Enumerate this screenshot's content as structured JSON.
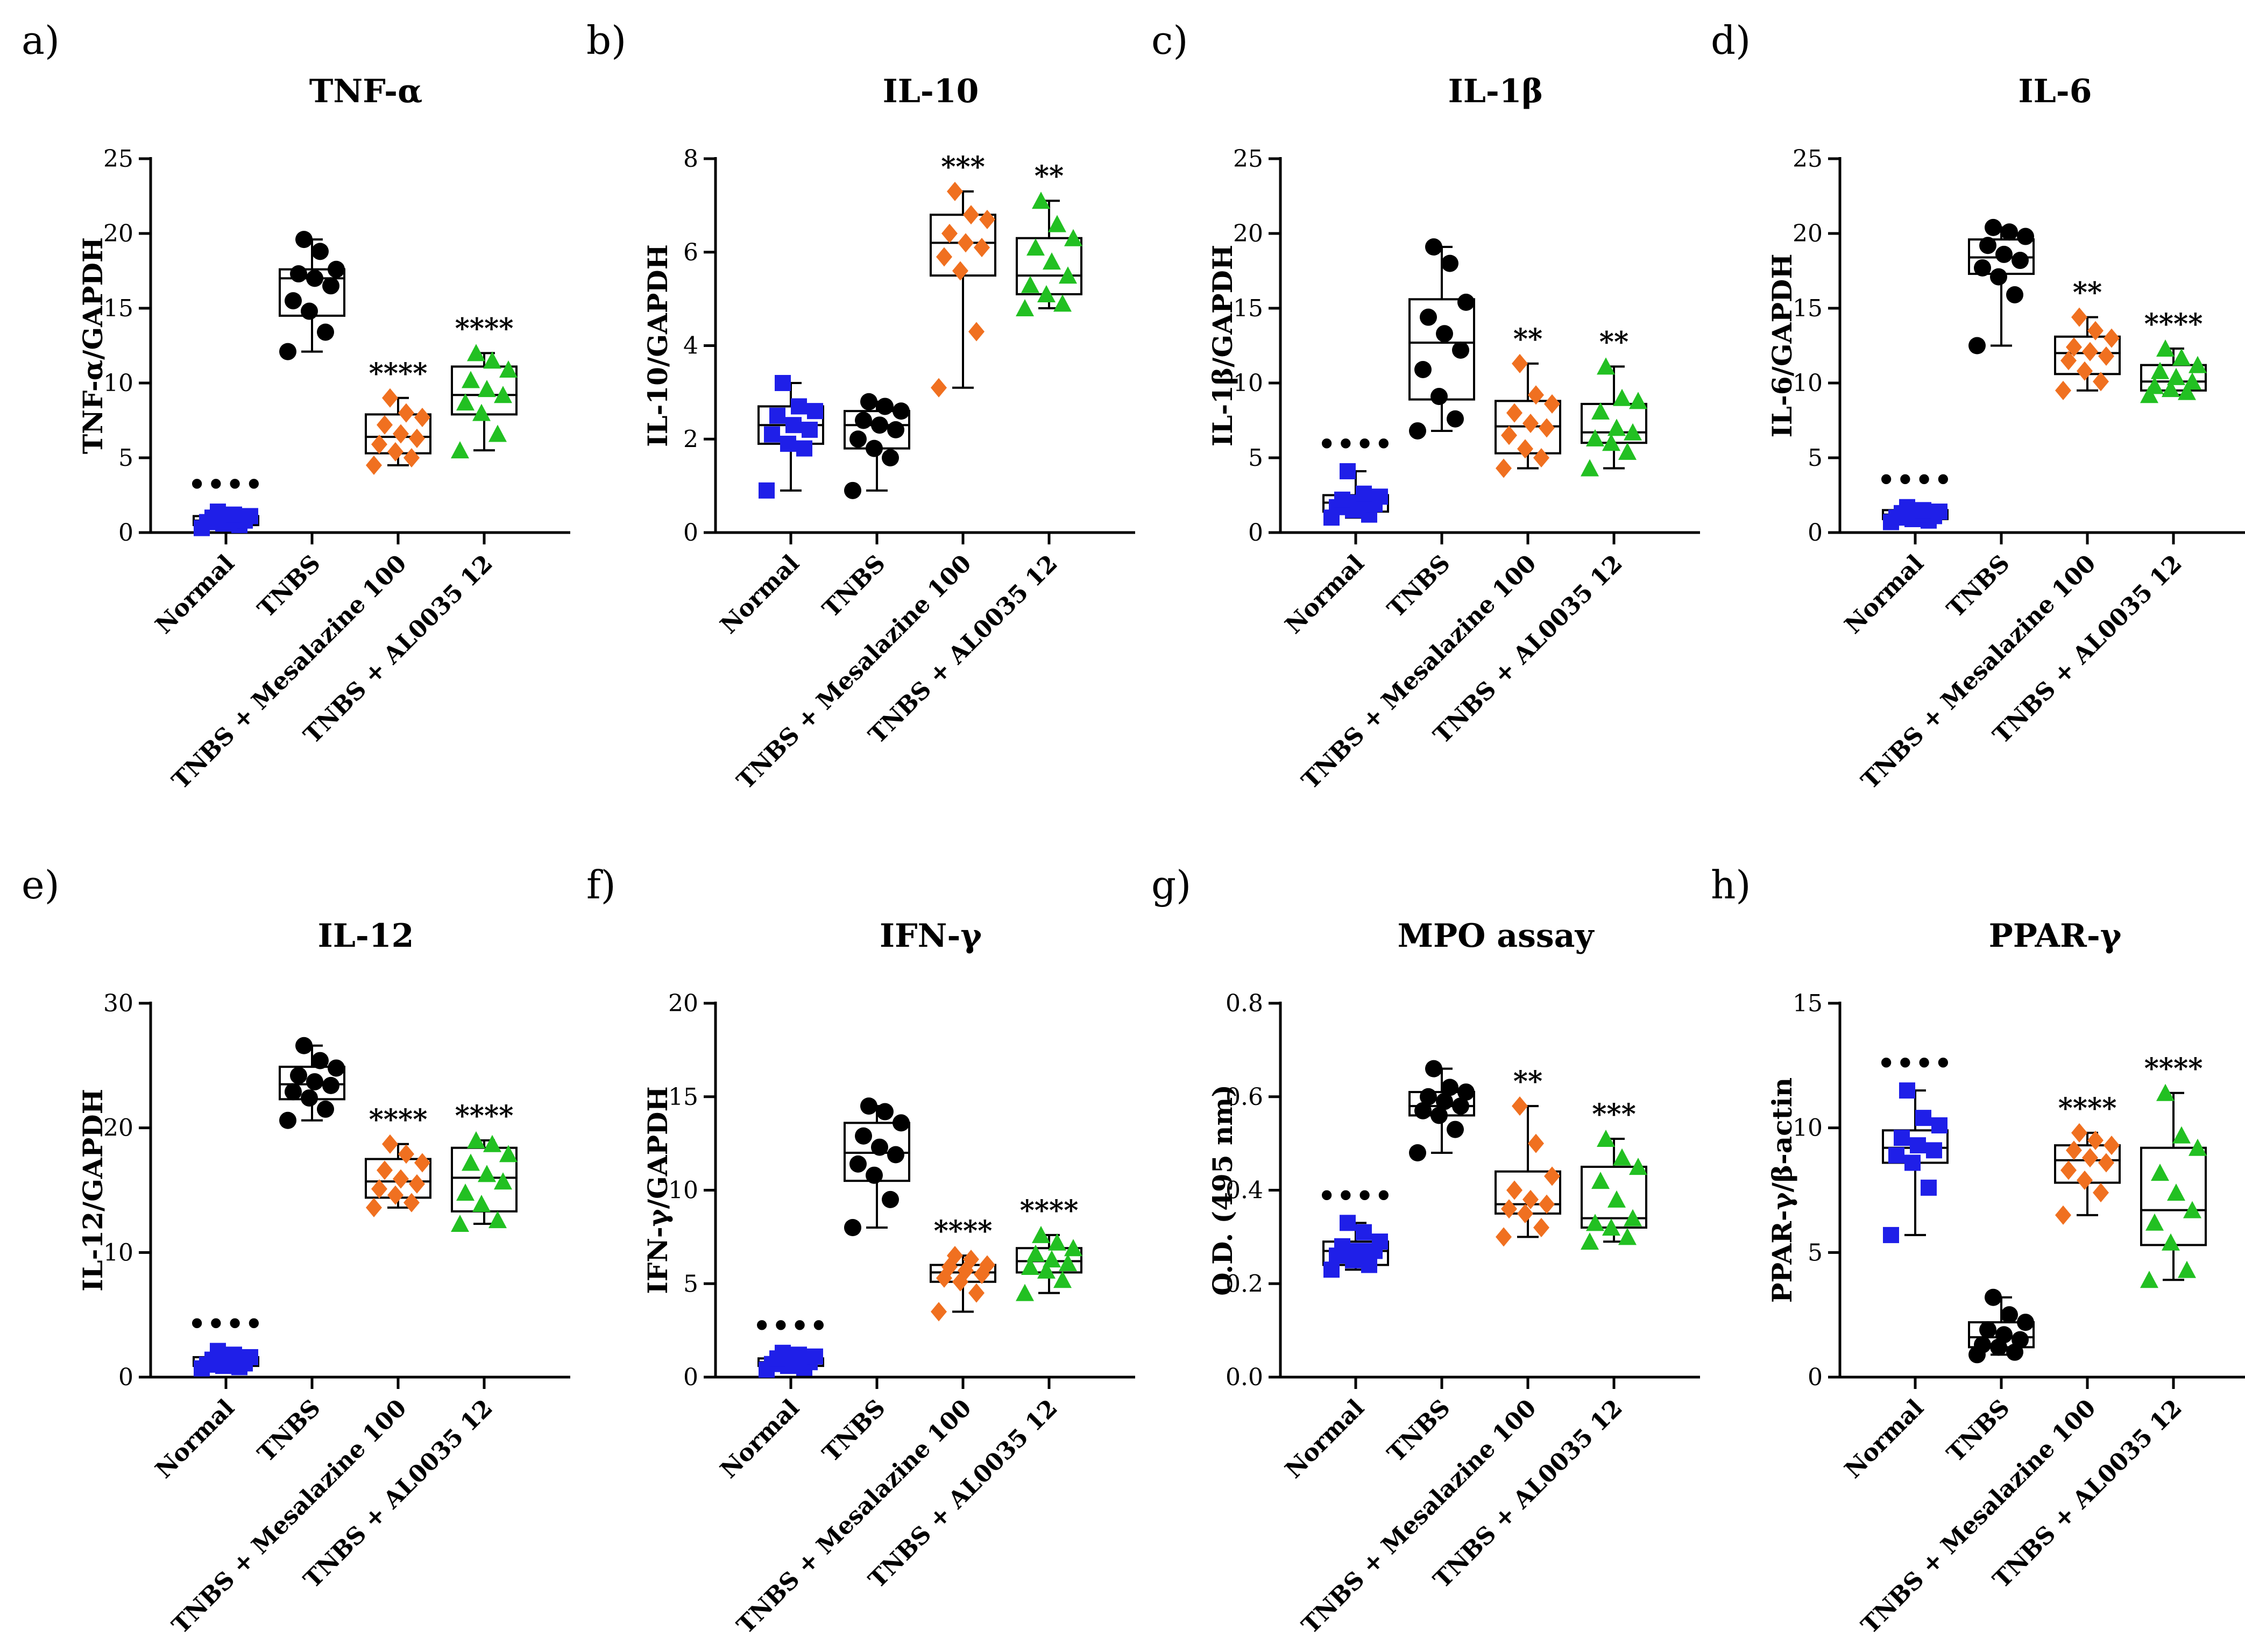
{
  "chart_data": [
    {
      "panel": "a)",
      "type": "box",
      "title": "TNF-α",
      "ylabel": "TNF-α/GAPDH",
      "ylim": [
        0,
        25
      ],
      "yticks": [
        0,
        5,
        10,
        15,
        20,
        25
      ],
      "groups": [
        {
          "name": "Normal",
          "color": "#1f1fe8",
          "marker": "square",
          "q1": 0.5,
          "median": 0.8,
          "q3": 1.1,
          "min": 0.3,
          "max": 1.4,
          "points": [
            0.3,
            0.5,
            0.6,
            0.7,
            0.8,
            0.9,
            1.0,
            1.1,
            1.2,
            1.4
          ],
          "sig": "••••"
        },
        {
          "name": "TNBS",
          "color": "#000000",
          "marker": "circle",
          "q1": 14.5,
          "median": 17.0,
          "q3": 17.6,
          "min": 12.1,
          "max": 19.6,
          "points": [
            12.1,
            13.4,
            14.8,
            15.5,
            16.5,
            17.0,
            17.3,
            17.6,
            18.8,
            19.6
          ],
          "sig": ""
        },
        {
          "name": "TNBS + Mesalazine 100",
          "color": "#f07020",
          "marker": "diamond",
          "q1": 5.3,
          "median": 6.4,
          "q3": 7.9,
          "min": 4.5,
          "max": 9.0,
          "points": [
            4.5,
            5.0,
            5.4,
            5.9,
            6.3,
            6.6,
            7.2,
            7.7,
            8.0,
            9.0
          ],
          "sig": "****"
        },
        {
          "name": "TNBS + AL0035 12",
          "color": "#22c022",
          "marker": "triangle",
          "q1": 7.9,
          "median": 9.2,
          "q3": 11.1,
          "min": 5.5,
          "max": 12.0,
          "points": [
            5.5,
            6.6,
            8.0,
            8.7,
            9.2,
            9.6,
            10.2,
            10.9,
            11.5,
            12.0
          ],
          "sig": "****"
        }
      ]
    },
    {
      "panel": "b)",
      "type": "box",
      "title": "IL-10",
      "ylabel": "IL-10/GAPDH",
      "ylim": [
        0,
        8
      ],
      "yticks": [
        0,
        2,
        4,
        6,
        8
      ],
      "groups": [
        {
          "name": "Normal",
          "color": "#1f1fe8",
          "marker": "square",
          "q1": 1.9,
          "median": 2.3,
          "q3": 2.7,
          "min": 0.9,
          "max": 3.2,
          "points": [
            0.9,
            1.8,
            1.9,
            2.1,
            2.2,
            2.3,
            2.5,
            2.6,
            2.7,
            3.2
          ],
          "sig": ""
        },
        {
          "name": "TNBS",
          "color": "#000000",
          "marker": "circle",
          "q1": 1.8,
          "median": 2.3,
          "q3": 2.6,
          "min": 0.9,
          "max": 2.8,
          "points": [
            0.9,
            1.6,
            1.8,
            2.0,
            2.2,
            2.3,
            2.4,
            2.6,
            2.7,
            2.8
          ],
          "sig": ""
        },
        {
          "name": "TNBS + Mesalazine 100",
          "color": "#f07020",
          "marker": "diamond",
          "q1": 5.5,
          "median": 6.2,
          "q3": 6.8,
          "min": 3.1,
          "max": 7.3,
          "points": [
            3.1,
            4.3,
            5.6,
            5.9,
            6.1,
            6.2,
            6.4,
            6.7,
            6.8,
            7.3
          ],
          "sig": "***"
        },
        {
          "name": "TNBS + AL0035 12",
          "color": "#22c022",
          "marker": "triangle",
          "q1": 5.1,
          "median": 5.5,
          "q3": 6.3,
          "min": 4.8,
          "max": 7.1,
          "points": [
            4.8,
            4.9,
            5.1,
            5.3,
            5.5,
            5.8,
            6.1,
            6.3,
            6.6,
            7.1
          ],
          "sig": "**"
        }
      ]
    },
    {
      "panel": "c)",
      "type": "box",
      "title": "IL-1β",
      "ylabel": "IL-1β/GAPDH",
      "ylim": [
        0,
        25
      ],
      "yticks": [
        0,
        5,
        10,
        15,
        20,
        25
      ],
      "groups": [
        {
          "name": "Normal",
          "color": "#1f1fe8",
          "marker": "square",
          "q1": 1.4,
          "median": 2.0,
          "q3": 2.5,
          "min": 1.0,
          "max": 4.1,
          "points": [
            1.0,
            1.2,
            1.5,
            1.7,
            1.9,
            2.0,
            2.2,
            2.4,
            2.6,
            4.1
          ],
          "sig": "••••"
        },
        {
          "name": "TNBS",
          "color": "#000000",
          "marker": "circle",
          "q1": 8.9,
          "median": 12.7,
          "q3": 15.6,
          "min": 6.8,
          "max": 19.1,
          "points": [
            6.8,
            7.6,
            9.1,
            10.9,
            12.2,
            13.3,
            14.4,
            15.4,
            18.0,
            19.1
          ],
          "sig": ""
        },
        {
          "name": "TNBS + Mesalazine 100",
          "color": "#f07020",
          "marker": "diamond",
          "q1": 5.3,
          "median": 7.1,
          "q3": 8.8,
          "min": 4.3,
          "max": 11.3,
          "points": [
            4.3,
            5.0,
            5.6,
            6.5,
            7.0,
            7.3,
            8.0,
            8.6,
            9.2,
            11.3
          ],
          "sig": "**"
        },
        {
          "name": "TNBS + AL0035 12",
          "color": "#22c022",
          "marker": "triangle",
          "q1": 6.0,
          "median": 6.7,
          "q3": 8.6,
          "min": 4.3,
          "max": 11.1,
          "points": [
            4.3,
            5.4,
            6.0,
            6.3,
            6.7,
            7.0,
            8.1,
            8.8,
            9.0,
            11.1
          ],
          "sig": "**"
        }
      ]
    },
    {
      "panel": "d)",
      "type": "box",
      "title": "IL-6",
      "ylabel": "IL-6/GAPDH",
      "ylim": [
        0,
        25
      ],
      "yticks": [
        0,
        5,
        10,
        15,
        20,
        25
      ],
      "groups": [
        {
          "name": "Normal",
          "color": "#1f1fe8",
          "marker": "square",
          "q1": 0.9,
          "median": 1.2,
          "q3": 1.5,
          "min": 0.7,
          "max": 1.7,
          "points": [
            0.7,
            0.8,
            0.9,
            1.0,
            1.1,
            1.2,
            1.3,
            1.4,
            1.5,
            1.7
          ],
          "sig": "••••"
        },
        {
          "name": "TNBS",
          "color": "#000000",
          "marker": "circle",
          "q1": 17.3,
          "median": 18.4,
          "q3": 19.6,
          "min": 12.5,
          "max": 20.4,
          "points": [
            12.5,
            15.9,
            17.1,
            17.7,
            18.2,
            18.6,
            19.2,
            19.8,
            20.1,
            20.4
          ],
          "sig": ""
        },
        {
          "name": "TNBS + Mesalazine 100",
          "color": "#f07020",
          "marker": "diamond",
          "q1": 10.6,
          "median": 12.0,
          "q3": 13.1,
          "min": 9.5,
          "max": 14.4,
          "points": [
            9.5,
            10.1,
            10.8,
            11.5,
            11.8,
            12.1,
            12.4,
            13.0,
            13.5,
            14.4
          ],
          "sig": "**"
        },
        {
          "name": "TNBS + AL0035 12",
          "color": "#22c022",
          "marker": "triangle",
          "q1": 9.5,
          "median": 10.1,
          "q3": 11.2,
          "min": 9.2,
          "max": 12.3,
          "points": [
            9.2,
            9.4,
            9.6,
            9.8,
            10.1,
            10.4,
            10.8,
            11.2,
            11.7,
            12.3
          ],
          "sig": "****"
        }
      ]
    },
    {
      "panel": "e)",
      "type": "box",
      "title": "IL-12",
      "ylabel": "IL-12/GAPDH",
      "ylim": [
        0,
        30
      ],
      "yticks": [
        0,
        10,
        20,
        30
      ],
      "groups": [
        {
          "name": "Normal",
          "color": "#1f1fe8",
          "marker": "square",
          "q1": 0.9,
          "median": 1.2,
          "q3": 1.6,
          "min": 0.7,
          "max": 2.1,
          "points": [
            0.7,
            0.8,
            0.9,
            1.0,
            1.1,
            1.2,
            1.4,
            1.6,
            1.8,
            2.1
          ],
          "sig": "••••"
        },
        {
          "name": "TNBS",
          "color": "#000000",
          "marker": "circle",
          "q1": 22.3,
          "median": 23.5,
          "q3": 24.9,
          "min": 20.6,
          "max": 26.6,
          "points": [
            20.6,
            21.5,
            22.4,
            22.9,
            23.4,
            23.7,
            24.2,
            24.8,
            25.4,
            26.6
          ],
          "sig": ""
        },
        {
          "name": "TNBS + Mesalazine 100",
          "color": "#f07020",
          "marker": "diamond",
          "q1": 14.4,
          "median": 15.7,
          "q3": 17.5,
          "min": 13.6,
          "max": 18.7,
          "points": [
            13.6,
            14.0,
            14.6,
            15.1,
            15.5,
            15.9,
            16.6,
            17.2,
            17.9,
            18.7
          ],
          "sig": "****"
        },
        {
          "name": "TNBS + AL0035 12",
          "color": "#22c022",
          "marker": "triangle",
          "q1": 13.3,
          "median": 16.0,
          "q3": 18.4,
          "min": 12.3,
          "max": 19.0,
          "points": [
            12.3,
            12.6,
            13.9,
            14.8,
            15.7,
            16.3,
            17.2,
            17.9,
            18.7,
            19.0
          ],
          "sig": "****"
        }
      ]
    },
    {
      "panel": "f)",
      "type": "box",
      "title": "IFN-γ",
      "ylabel": "IFN-γ/GAPDH",
      "ylim": [
        0,
        20
      ],
      "yticks": [
        0,
        5,
        10,
        15,
        20
      ],
      "groups": [
        {
          "name": "Normal",
          "color": "#1f1fe8",
          "marker": "square",
          "q1": 0.6,
          "median": 0.8,
          "q3": 1.0,
          "min": 0.4,
          "max": 1.3,
          "points": [
            0.4,
            0.5,
            0.6,
            0.7,
            0.8,
            0.9,
            1.0,
            1.1,
            1.2,
            1.3
          ],
          "sig": "••••"
        },
        {
          "name": "TNBS",
          "color": "#000000",
          "marker": "circle",
          "q1": 10.5,
          "median": 12.0,
          "q3": 13.6,
          "min": 8.0,
          "max": 14.5,
          "points": [
            8.0,
            9.5,
            10.8,
            11.4,
            11.9,
            12.3,
            12.9,
            13.6,
            14.2,
            14.5
          ],
          "sig": ""
        },
        {
          "name": "TNBS + Mesalazine 100",
          "color": "#f07020",
          "marker": "diamond",
          "q1": 5.1,
          "median": 5.6,
          "q3": 6.0,
          "min": 3.5,
          "max": 6.5,
          "points": [
            3.5,
            4.5,
            5.1,
            5.3,
            5.5,
            5.7,
            5.9,
            6.0,
            6.3,
            6.5
          ],
          "sig": "****"
        },
        {
          "name": "TNBS + AL0035 12",
          "color": "#22c022",
          "marker": "triangle",
          "q1": 5.6,
          "median": 6.2,
          "q3": 6.9,
          "min": 4.5,
          "max": 7.6,
          "points": [
            4.5,
            5.2,
            5.7,
            5.9,
            6.1,
            6.3,
            6.6,
            6.9,
            7.2,
            7.6
          ],
          "sig": "****"
        }
      ]
    },
    {
      "panel": "g)",
      "type": "box",
      "title": "MPO assay",
      "ylabel": "O.D. (495 nm)",
      "ylim": [
        0,
        0.8
      ],
      "yticks": [
        "0.0",
        "0.2",
        "0.4",
        "0.6",
        "0.8"
      ],
      "groups": [
        {
          "name": "Normal",
          "color": "#1f1fe8",
          "marker": "square",
          "q1": 0.24,
          "median": 0.27,
          "q3": 0.29,
          "min": 0.23,
          "max": 0.33,
          "points": [
            0.23,
            0.24,
            0.25,
            0.26,
            0.27,
            0.27,
            0.28,
            0.29,
            0.31,
            0.33
          ],
          "sig": "••••"
        },
        {
          "name": "TNBS",
          "color": "#000000",
          "marker": "circle",
          "q1": 0.56,
          "median": 0.58,
          "q3": 0.61,
          "min": 0.48,
          "max": 0.66,
          "points": [
            0.48,
            0.53,
            0.56,
            0.57,
            0.58,
            0.59,
            0.6,
            0.61,
            0.62,
            0.66
          ],
          "sig": ""
        },
        {
          "name": "TNBS + Mesalazine 100",
          "color": "#f07020",
          "marker": "diamond",
          "q1": 0.35,
          "median": 0.37,
          "q3": 0.44,
          "min": 0.3,
          "max": 0.58,
          "points": [
            0.3,
            0.32,
            0.35,
            0.36,
            0.37,
            0.38,
            0.4,
            0.43,
            0.5,
            0.58
          ],
          "sig": "**"
        },
        {
          "name": "TNBS + AL0035 12",
          "color": "#22c022",
          "marker": "triangle",
          "q1": 0.32,
          "median": 0.34,
          "q3": 0.45,
          "min": 0.29,
          "max": 0.51,
          "points": [
            0.29,
            0.3,
            0.32,
            0.33,
            0.34,
            0.38,
            0.42,
            0.45,
            0.47,
            0.51
          ],
          "sig": "***"
        }
      ]
    },
    {
      "panel": "h)",
      "type": "box",
      "title": "PPAR-γ",
      "ylabel": "PPAR-γ/β-actin",
      "ylim": [
        0,
        15
      ],
      "yticks": [
        0,
        5,
        10,
        15
      ],
      "groups": [
        {
          "name": "Normal",
          "color": "#1f1fe8",
          "marker": "square",
          "q1": 8.6,
          "median": 9.2,
          "q3": 9.9,
          "min": 5.7,
          "max": 11.5,
          "points": [
            5.7,
            7.6,
            8.6,
            8.9,
            9.1,
            9.3,
            9.6,
            10.1,
            10.4,
            11.5
          ],
          "sig": "••••"
        },
        {
          "name": "TNBS",
          "color": "#000000",
          "marker": "circle",
          "q1": 1.2,
          "median": 1.6,
          "q3": 2.2,
          "min": 0.9,
          "max": 3.2,
          "points": [
            0.9,
            1.0,
            1.2,
            1.3,
            1.5,
            1.7,
            1.9,
            2.2,
            2.5,
            3.2
          ],
          "sig": ""
        },
        {
          "name": "TNBS + Mesalazine 100",
          "color": "#f07020",
          "marker": "diamond",
          "q1": 7.8,
          "median": 8.7,
          "q3": 9.3,
          "min": 6.5,
          "max": 9.8,
          "points": [
            6.5,
            7.4,
            7.9,
            8.3,
            8.6,
            8.8,
            9.1,
            9.3,
            9.5,
            9.8
          ],
          "sig": "****"
        },
        {
          "name": "TNBS + AL0035 12",
          "color": "#22c022",
          "marker": "triangle",
          "q1": 5.3,
          "median": 6.7,
          "q3": 9.2,
          "min": 3.9,
          "max": 11.4,
          "points": [
            3.9,
            4.3,
            5.4,
            6.2,
            6.7,
            7.4,
            8.2,
            9.2,
            9.7,
            11.4
          ],
          "sig": "****"
        }
      ]
    }
  ]
}
